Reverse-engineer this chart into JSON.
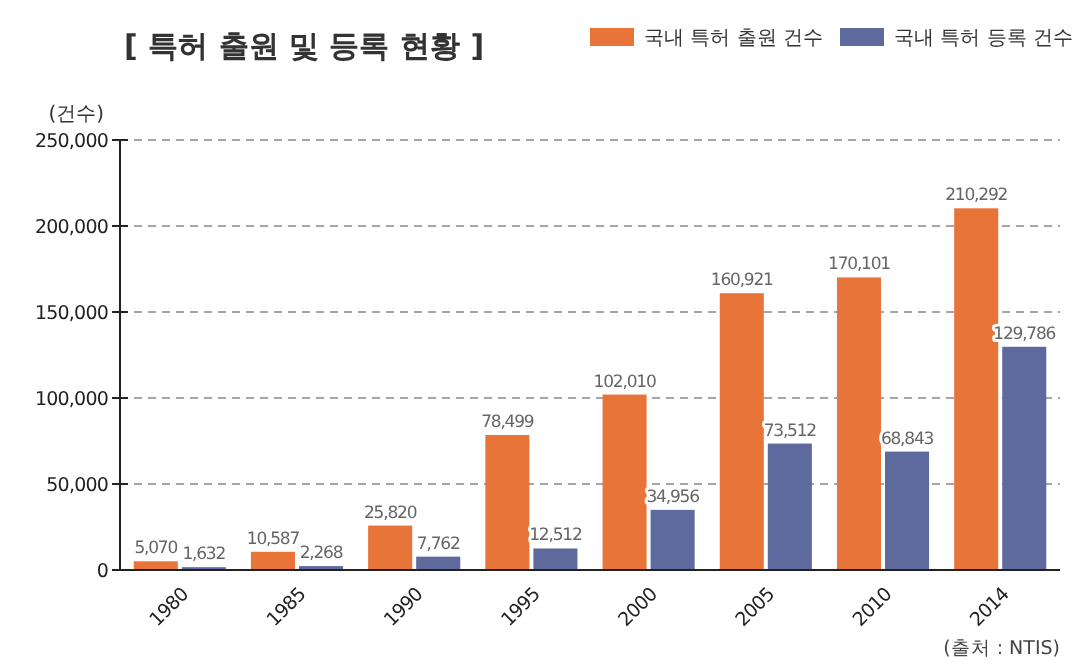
{
  "chart_data": {
    "type": "bar",
    "title": "[ 특허 출원 및 등록 현황 ]",
    "ylabel": "(건수)",
    "categories": [
      "1980",
      "1985",
      "1990",
      "1995",
      "2000",
      "2005",
      "2010",
      "2014"
    ],
    "series": [
      {
        "name": "국내 특허 출원 건수",
        "color": "#e8743a",
        "values": [
          5070,
          10587,
          25820,
          78499,
          102010,
          160921,
          170101,
          210292
        ],
        "value_labels": [
          "5,070",
          "10,587",
          "25,820",
          "78,499",
          "102,010",
          "160,921",
          "170,101",
          "210,292"
        ]
      },
      {
        "name": "국내 특허 등록 건수",
        "color": "#5e6a9e",
        "values": [
          1632,
          2268,
          7762,
          12512,
          34956,
          73512,
          68843,
          129786
        ],
        "value_labels": [
          "1,632",
          "2,268",
          "7,762",
          "12,512",
          "34,956",
          "73,512",
          "68,843",
          "129,786"
        ]
      }
    ],
    "ylim": [
      0,
      250000
    ],
    "yticks": [
      0,
      {
        "value": 50000,
        "label": "50,000"
      },
      {
        "value": 100000,
        "label": "100,000"
      },
      {
        "value": 150000,
        "label": "150,000"
      },
      {
        "value": 200000,
        "label": "200,000"
      },
      {
        "value": 250000,
        "label": "250,000"
      }
    ],
    "grid": "y",
    "legend": "top right",
    "annotations": [
      "(출처 : NTIS)"
    ]
  }
}
